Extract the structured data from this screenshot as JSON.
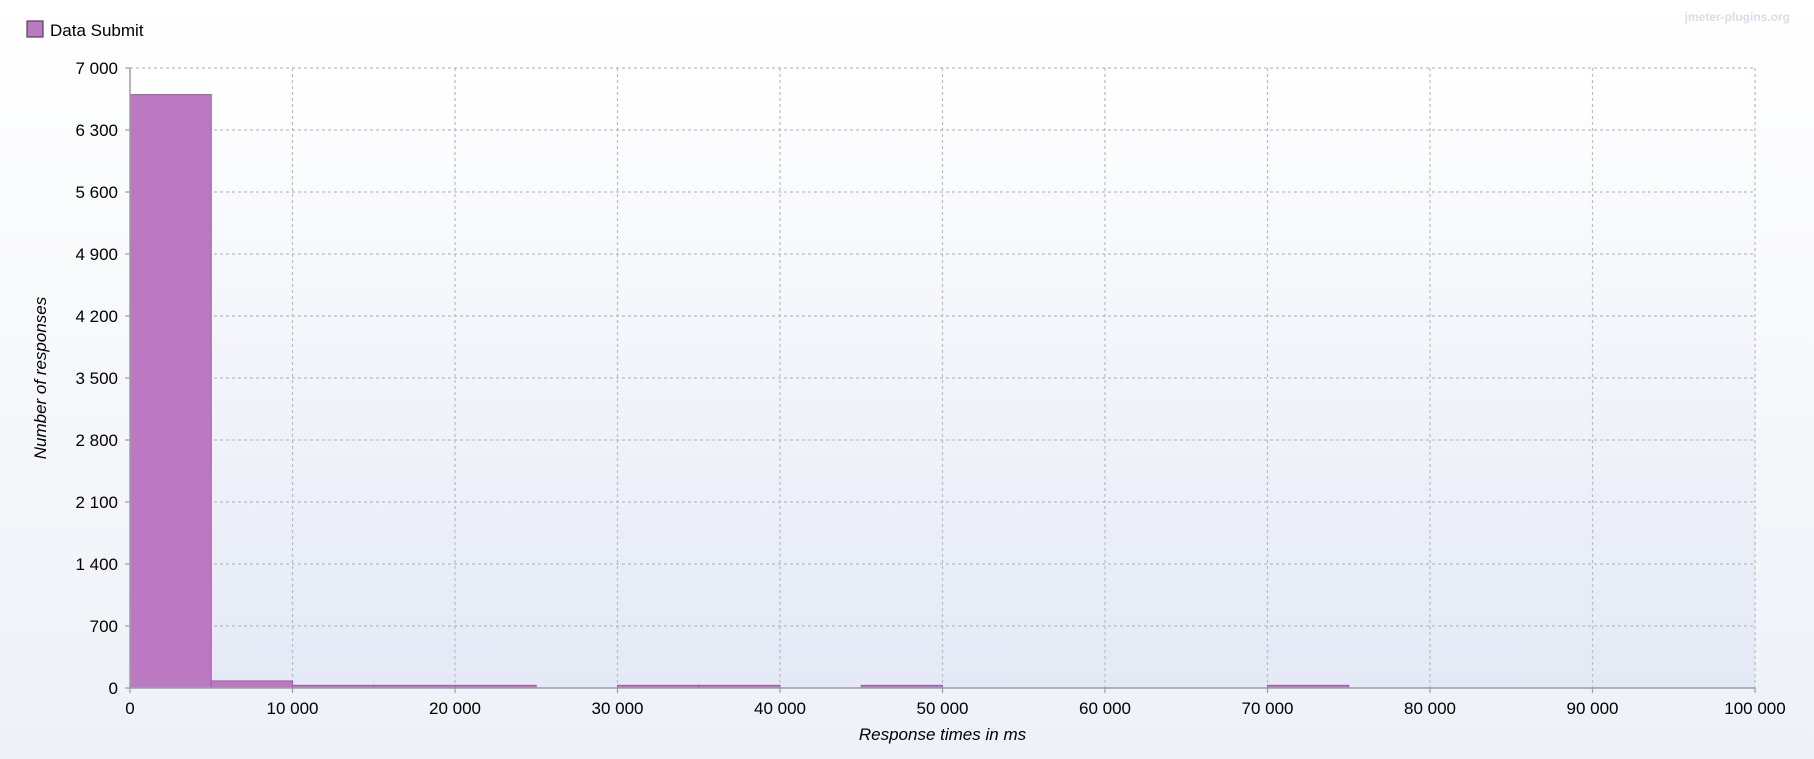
{
  "legend": {
    "series_name": "Data Submit",
    "swatch_color": "#bb79c1"
  },
  "watermark": "jmeter-plugins.org",
  "colors": {
    "bar_fill": "#bb79c1",
    "bar_stroke": "#9f5aa6",
    "plot_bg_top": "#ffffff",
    "plot_bg_bottom": "#e4e9f5"
  },
  "chart_data": {
    "type": "bar",
    "title": "",
    "xlabel": "Response times in ms",
    "ylabel": "Number of responses",
    "xlim": [
      0,
      100000
    ],
    "ylim": [
      0,
      7000
    ],
    "bin_width": 5000,
    "grid": true,
    "legend_position": "top-left",
    "x_ticks": [
      0,
      10000,
      20000,
      30000,
      40000,
      50000,
      60000,
      70000,
      80000,
      90000,
      100000
    ],
    "x_tick_labels": [
      "0",
      "10 000",
      "20 000",
      "30 000",
      "40 000",
      "50 000",
      "60 000",
      "70 000",
      "80 000",
      "90 000",
      "100 000"
    ],
    "y_ticks": [
      0,
      700,
      1400,
      2100,
      2800,
      3500,
      4200,
      4900,
      5600,
      6300,
      7000
    ],
    "y_tick_labels": [
      "0",
      "700",
      "1 400",
      "2 100",
      "2 800",
      "3 500",
      "4 200",
      "4 900",
      "5 600",
      "6 300",
      "7 000"
    ],
    "series": [
      {
        "name": "Data Submit",
        "bins": [
          {
            "x": 0,
            "value": 6700
          },
          {
            "x": 5000,
            "value": 80
          },
          {
            "x": 10000,
            "value": 30
          },
          {
            "x": 15000,
            "value": 30
          },
          {
            "x": 20000,
            "value": 30
          },
          {
            "x": 30000,
            "value": 30
          },
          {
            "x": 35000,
            "value": 30
          },
          {
            "x": 45000,
            "value": 30
          },
          {
            "x": 70000,
            "value": 30
          }
        ]
      }
    ]
  }
}
